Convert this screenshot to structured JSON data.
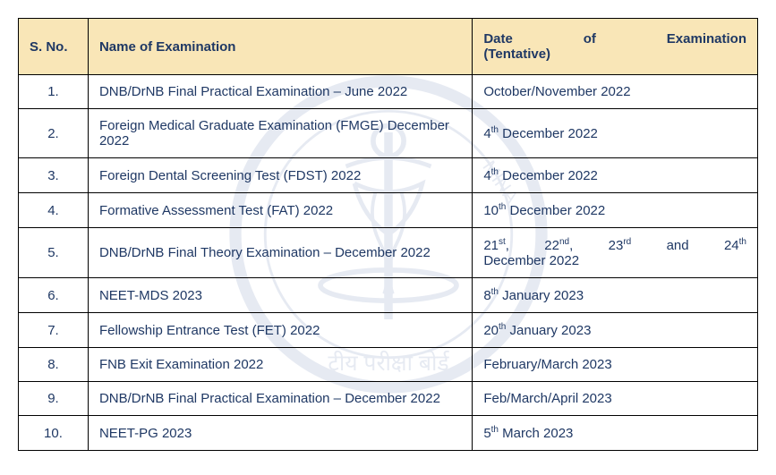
{
  "table": {
    "headers": {
      "sno": "S. No.",
      "name": "Name of Examination",
      "date_line1": "Date of Examination",
      "date_line2": "(Tentative)"
    },
    "rows": [
      {
        "sno": "1.",
        "name": "DNB/DrNB Final Practical Examination – June 2022",
        "date": {
          "plain": "October/November 2022"
        }
      },
      {
        "sno": "2.",
        "name": "Foreign Medical Graduate Examination (FMGE) December 2022",
        "date": {
          "parts": [
            {
              "t": "4"
            },
            {
              "sup": "th"
            },
            {
              "t": " December 2022"
            }
          ]
        }
      },
      {
        "sno": "3.",
        "name": "Foreign Dental Screening Test (FDST) 2022",
        "date": {
          "parts": [
            {
              "t": "4"
            },
            {
              "sup": "th"
            },
            {
              "t": " December 2022"
            }
          ]
        }
      },
      {
        "sno": "4.",
        "name": "Formative Assessment Test (FAT) 2022",
        "date": {
          "parts": [
            {
              "t": "10"
            },
            {
              "sup": "th"
            },
            {
              "t": " December 2022"
            }
          ]
        }
      },
      {
        "sno": "5.",
        "name": "DNB/DrNB Final Theory Examination – December 2022",
        "date": {
          "justified": true,
          "line1_parts": [
            {
              "t": "21"
            },
            {
              "sup": "st"
            },
            {
              "t": ", 22"
            },
            {
              "sup": "nd"
            },
            {
              "t": ", 23"
            },
            {
              "sup": "rd"
            },
            {
              "t": " and 24"
            },
            {
              "sup": "th"
            }
          ],
          "line2": "December 2022"
        }
      },
      {
        "sno": "6.",
        "name": "NEET-MDS 2023",
        "date": {
          "parts": [
            {
              "t": "8"
            },
            {
              "sup": "th"
            },
            {
              "t": " January 2023"
            }
          ]
        }
      },
      {
        "sno": "7.",
        "name": "Fellowship Entrance Test (FET) 2022",
        "date": {
          "parts": [
            {
              "t": "20"
            },
            {
              "sup": "th"
            },
            {
              "t": " January 2023"
            }
          ]
        }
      },
      {
        "sno": "8.",
        "name": "FNB Exit Examination 2022",
        "date": {
          "plain": "February/March 2023"
        }
      },
      {
        "sno": "9.",
        "name": "DNB/DrNB Final Practical Examination – December 2022",
        "date": {
          "plain": "Feb/March/April 2023"
        }
      },
      {
        "sno": "10.",
        "name": "NEET-PG 2023",
        "date": {
          "parts": [
            {
              "t": "5"
            },
            {
              "sup": "th"
            },
            {
              "t": " March 2023"
            }
          ]
        }
      }
    ]
  },
  "colors": {
    "header_bg": "#f9e6b7",
    "border": "#000000",
    "text": "#1f3864"
  }
}
